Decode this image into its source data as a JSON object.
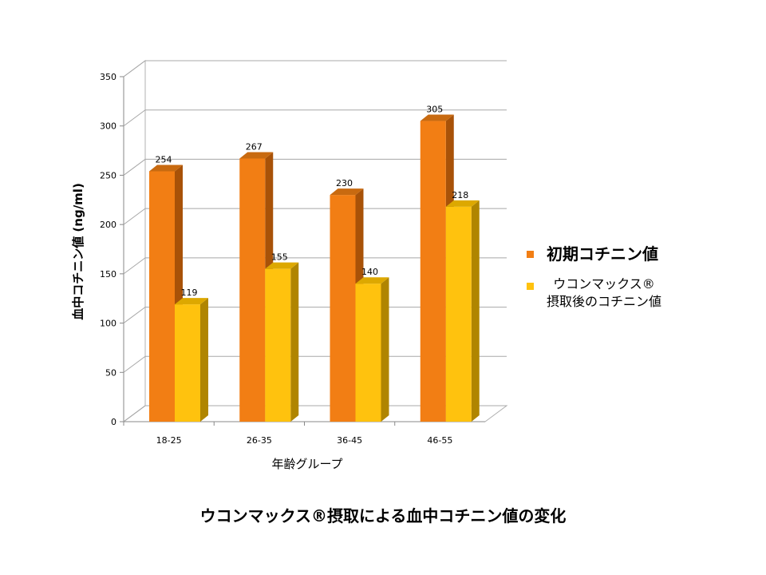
{
  "title": "ウコンマックス®摂取による血中コチニン値の変化",
  "chart_data": {
    "type": "bar",
    "categories": [
      "18-25",
      "26-35",
      "36-45",
      "46-55"
    ],
    "series": [
      {
        "name": "初期コチニン値",
        "values": [
          254,
          267,
          230,
          305
        ]
      },
      {
        "name": "ウコンマックス® 摂取後のコチニン値",
        "values": [
          119,
          155,
          140,
          218
        ]
      }
    ],
    "xlabel": "年齢グループ",
    "ylabel": "血中コチニン値 (ng/ml)",
    "ylim": [
      0,
      350
    ],
    "yticks": [
      "0",
      "50",
      "100",
      "150",
      "200",
      "250",
      "300",
      "350"
    ],
    "grid": true,
    "legend_position": "right",
    "colors": {
      "series1_front": "#F27E14",
      "series1_side": "#A85208",
      "series1_top": "#C86A10",
      "series2_front": "#FFC20E",
      "series2_side": "#B08500",
      "series2_top": "#DDA800"
    }
  },
  "legend": {
    "item1_label": "初期コチニン値",
    "item2_line1": "ウコンマックス®",
    "item2_line2": "摂取後のコチニン値"
  }
}
